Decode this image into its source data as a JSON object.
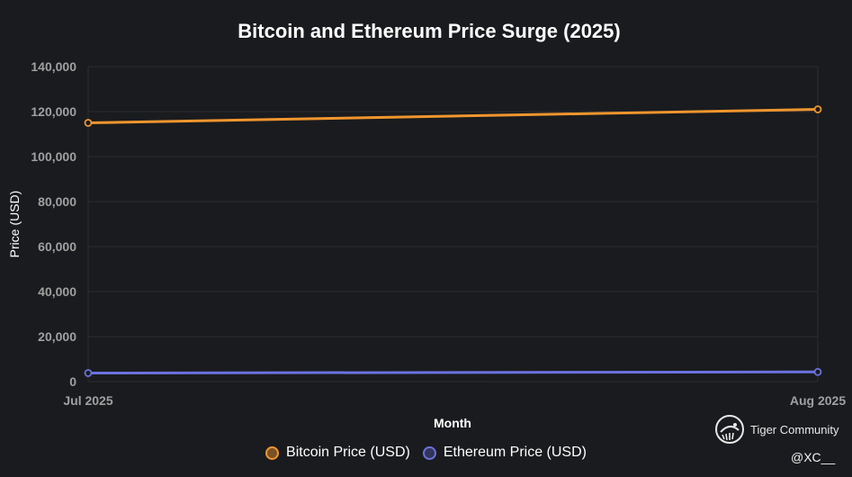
{
  "chart_data": {
    "type": "line",
    "title": "Bitcoin and Ethereum Price Surge (2025)",
    "xlabel": "Month",
    "ylabel": "Price (USD)",
    "categories": [
      "Jul 2025",
      "Aug 2025"
    ],
    "ylim": [
      0,
      140000
    ],
    "yticks": [
      "0",
      "20,000",
      "40,000",
      "60,000",
      "80,000",
      "100,000",
      "120,000",
      "140,000"
    ],
    "grid": true,
    "legend_position": "bottom",
    "series": [
      {
        "name": "Bitcoin Price (USD)",
        "values": [
          115000,
          121000
        ],
        "color": "#f0962e"
      },
      {
        "name": "Ethereum Price (USD)",
        "values": [
          3800,
          4300
        ],
        "color": "#6b72e0"
      }
    ]
  },
  "watermark": {
    "brand": "Tiger Community",
    "icon": "tiger-logo-icon",
    "handle": "@XC__"
  }
}
